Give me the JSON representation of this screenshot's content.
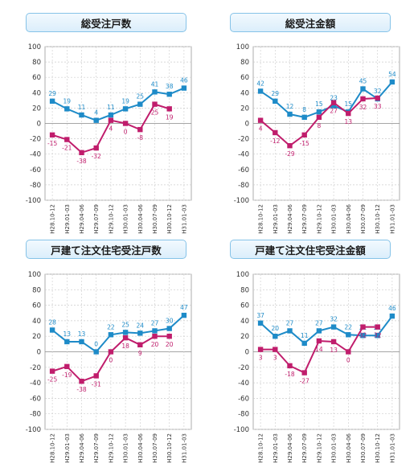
{
  "colors": {
    "blue": "#1e8bc8",
    "magenta": "#c01d6c",
    "grid": "#cccccc",
    "plot_bg": "#ffffff"
  },
  "chart_data": [
    {
      "type": "line",
      "title": "総受注戸数",
      "x": [
        "H28.10-12",
        "H29.01-03",
        "H29.04-06",
        "H29.07-09",
        "H29.10-12",
        "H30.01-03",
        "H30.04-06",
        "H30.07-09",
        "H30.10-12",
        "H31.01-03"
      ],
      "ylim": [
        -100,
        100
      ],
      "yticks": [
        100,
        80,
        60,
        40,
        20,
        0,
        -20,
        -40,
        -60,
        -80,
        -100
      ],
      "grid": true,
      "series": [
        {
          "color": "#1e8bc8",
          "values": [
            29,
            19,
            11,
            4,
            11,
            19,
            25,
            41,
            38,
            46
          ]
        },
        {
          "color": "#c01d6c",
          "values": [
            -15,
            -21,
            -38,
            -32,
            4,
            0,
            -8,
            25,
            19,
            null
          ]
        }
      ]
    },
    {
      "type": "line",
      "title": "総受注金額",
      "x": [
        "H28.10-12",
        "H29.01-03",
        "H29.04-06",
        "H29.07-09",
        "H29.10-12",
        "H30.01-03",
        "H30.04-06",
        "H30.07-09",
        "H30.10-12",
        "H31.01-03"
      ],
      "ylim": [
        -100,
        100
      ],
      "yticks": [
        100,
        80,
        60,
        40,
        20,
        0,
        -20,
        -40,
        -60,
        -80,
        -100
      ],
      "grid": true,
      "series": [
        {
          "color": "#1e8bc8",
          "values": [
            42,
            29,
            12,
            8,
            15,
            23,
            15,
            45,
            32,
            54
          ]
        },
        {
          "color": "#c01d6c",
          "values": [
            4,
            -12,
            -29,
            -15,
            8,
            27,
            13,
            32,
            33,
            null
          ]
        }
      ]
    },
    {
      "type": "line",
      "title": "戸建て注文住宅受注戸数",
      "x": [
        "H28.10-12",
        "H29.01-03",
        "H29.04-06",
        "H29.07-09",
        "H29.10-12",
        "H30.01-03",
        "H30.04-06",
        "H30.07-09",
        "H30.10-12",
        "H31.01-03"
      ],
      "ylim": [
        -100,
        100
      ],
      "yticks": [
        100,
        80,
        60,
        40,
        20,
        0,
        -20,
        -40,
        -60,
        -80,
        -100
      ],
      "grid": true,
      "series": [
        {
          "color": "#1e8bc8",
          "values": [
            28,
            13,
            13,
            0,
            22,
            25,
            24,
            27,
            30,
            47
          ]
        },
        {
          "color": "#c01d6c",
          "values": [
            -25,
            -19,
            -38,
            -31,
            0,
            18,
            9,
            20,
            20,
            null
          ]
        }
      ]
    },
    {
      "type": "line",
      "title": "戸建て注文住宅受注金額",
      "x": [
        "H28.10-12",
        "H29.01-03",
        "H29.04-06",
        "H29.07-09",
        "H29.10-12",
        "H30.01-03",
        "H30.04-06",
        "H30.07-09",
        "H30.10-12",
        "H31.01-03"
      ],
      "ylim": [
        -100,
        100
      ],
      "yticks": [
        100,
        80,
        60,
        40,
        20,
        0,
        -20,
        -40,
        -60,
        -80,
        -100
      ],
      "grid": true,
      "series": [
        {
          "color": "#1e8bc8",
          "values": [
            37,
            20,
            27,
            11,
            27,
            32,
            22,
            21,
            21,
            46
          ]
        },
        {
          "color": "#c01d6c",
          "values": [
            3,
            3,
            -18,
            -27,
            14,
            13,
            0,
            32,
            32,
            null
          ]
        }
      ]
    }
  ]
}
